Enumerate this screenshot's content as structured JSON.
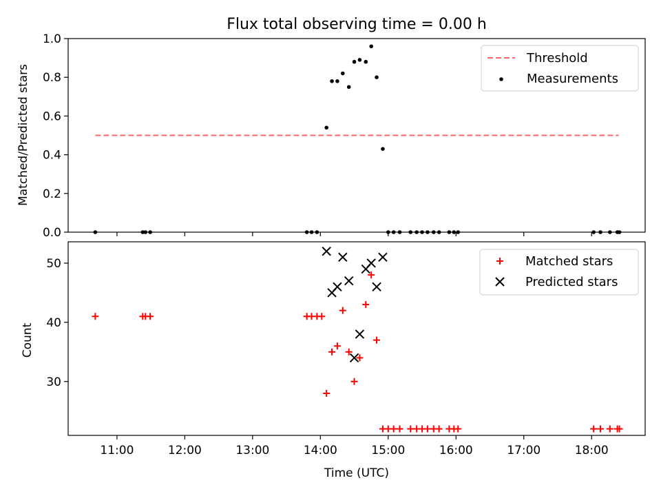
{
  "chart_data": [
    {
      "type": "scatter",
      "title": "Flux total observing time = 0.00 h",
      "xlabel": "",
      "ylabel": "Matched/Predicted stars",
      "ylim": [
        0,
        1.0
      ],
      "yticks": [
        "0.0",
        "0.2",
        "0.4",
        "0.6",
        "0.8",
        "1.0"
      ],
      "ytick_values": [
        0,
        0.2,
        0.4,
        0.6,
        0.8,
        1.0
      ],
      "xlim_hours": [
        10.28,
        18.79
      ],
      "legend_position": "top-right",
      "series": [
        {
          "name": "Threshold",
          "kind": "line",
          "style": "dashed",
          "color": "#ff6666",
          "x_hours": [
            10.68,
            18.4
          ],
          "values": [
            0.5,
            0.5
          ]
        },
        {
          "name": "Measurements",
          "kind": "scatter",
          "marker": "dot",
          "color": "#000000",
          "x_hours": [
            10.68,
            11.38,
            11.42,
            11.49,
            13.8,
            13.87,
            13.95,
            14.09,
            14.17,
            14.25,
            14.33,
            14.42,
            14.5,
            14.58,
            14.67,
            14.75,
            14.83,
            14.92,
            15.0,
            15.08,
            15.17,
            15.33,
            15.42,
            15.5,
            15.58,
            15.67,
            15.75,
            15.9,
            15.97,
            16.03,
            18.03,
            18.13,
            18.27,
            18.38,
            18.41
          ],
          "values": [
            0,
            0,
            0,
            0,
            0,
            0,
            0,
            0.54,
            0.78,
            0.78,
            0.82,
            0.75,
            0.88,
            0.89,
            0.88,
            0.96,
            0.8,
            0.43,
            0,
            0,
            0,
            0,
            0,
            0,
            0,
            0,
            0,
            0,
            0,
            0,
            0,
            0,
            0,
            0,
            0
          ]
        }
      ]
    },
    {
      "type": "scatter",
      "title": "",
      "xlabel": "Time (UTC)",
      "ylabel": "Count",
      "ylim": [
        20.9,
        53.6
      ],
      "yticks": [
        "30",
        "40",
        "50"
      ],
      "ytick_values": [
        30,
        40,
        50
      ],
      "xlim_hours": [
        10.28,
        18.79
      ],
      "xticks": [
        "11:00",
        "12:00",
        "13:00",
        "14:00",
        "15:00",
        "16:00",
        "17:00",
        "18:00"
      ],
      "xtick_values": [
        11,
        12,
        13,
        14,
        15,
        16,
        17,
        18
      ],
      "legend_position": "top-right",
      "series": [
        {
          "name": "Matched stars",
          "kind": "scatter",
          "marker": "plus",
          "color": "#ff0000",
          "x_hours": [
            10.68,
            11.38,
            11.42,
            11.49,
            13.8,
            13.87,
            13.95,
            14.02,
            14.09,
            14.17,
            14.25,
            14.33,
            14.42,
            14.5,
            14.58,
            14.67,
            14.75,
            14.83,
            14.92,
            15.0,
            15.08,
            15.17,
            15.33,
            15.42,
            15.5,
            15.58,
            15.67,
            15.75,
            15.9,
            15.97,
            16.03,
            18.03,
            18.13,
            18.27,
            18.38,
            18.41
          ],
          "values": [
            41,
            41,
            41,
            41,
            41,
            41,
            41,
            41,
            28,
            35,
            36,
            42,
            35,
            30,
            34,
            43,
            48,
            37,
            22,
            22,
            22,
            22,
            22,
            22,
            22,
            22,
            22,
            22,
            22,
            22,
            22,
            22,
            22,
            22,
            22,
            22
          ]
        },
        {
          "name": "Predicted stars",
          "kind": "scatter",
          "marker": "x",
          "color": "#000000",
          "x_hours": [
            14.09,
            14.17,
            14.25,
            14.33,
            14.42,
            14.5,
            14.58,
            14.67,
            14.75,
            14.83,
            14.92
          ],
          "values": [
            52,
            45,
            46,
            51,
            47,
            34,
            38,
            49,
            50,
            46,
            51
          ]
        }
      ]
    }
  ]
}
